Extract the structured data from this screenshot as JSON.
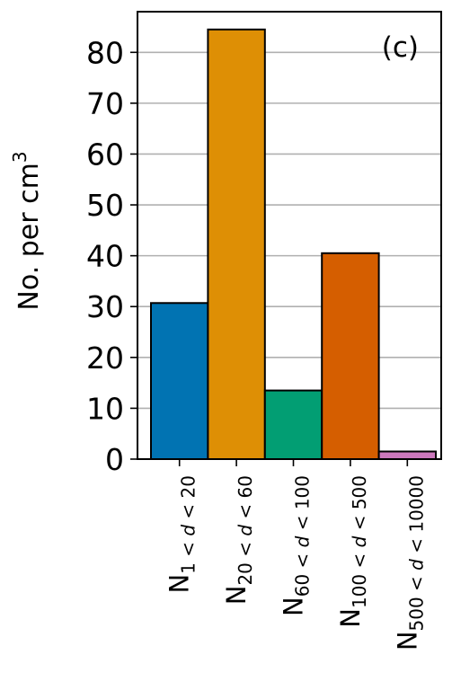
{
  "chart_data": {
    "type": "bar",
    "panel_label": "(c)",
    "ylabel_main": "No. per cm",
    "ylabel_sup": "3",
    "categories": [
      {
        "main": "N",
        "sub": "1 < d < 20",
        "sub_parts": [
          "1 < ",
          "d",
          " < 20"
        ]
      },
      {
        "main": "N",
        "sub": "20 < d < 60",
        "sub_parts": [
          "20 < ",
          "d",
          " < 60"
        ]
      },
      {
        "main": "N",
        "sub": "60 < d < 100",
        "sub_parts": [
          "60 < ",
          "d",
          " < 100"
        ]
      },
      {
        "main": "N",
        "sub": "100 < d < 500",
        "sub_parts": [
          "100 < ",
          "d",
          " < 500"
        ]
      },
      {
        "main": "N",
        "sub": "500 < d < 10000",
        "sub_parts": [
          "500 < ",
          "d",
          " < 10000"
        ]
      }
    ],
    "values": [
      30.7,
      84.5,
      13.5,
      40.5,
      1.5
    ],
    "colors": [
      "#0173b2",
      "#de8f05",
      "#029e73",
      "#d55e00",
      "#cc78bc"
    ],
    "ylim": [
      0,
      88
    ],
    "yticks": [
      0,
      10,
      20,
      30,
      40,
      50,
      60,
      70,
      80
    ],
    "grid": true,
    "grid_axis": "y",
    "legend": "none"
  }
}
